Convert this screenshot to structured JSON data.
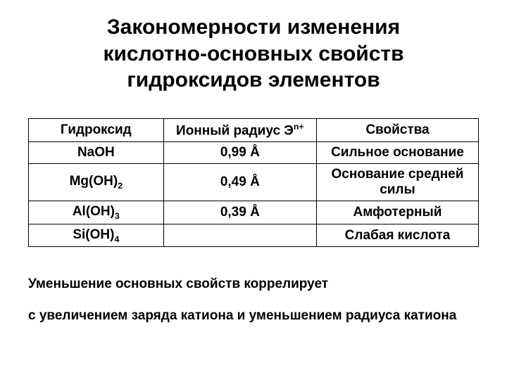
{
  "title_line1": "Закономерности изменения",
  "title_line2": "кислотно-основных свойств",
  "title_line3": "гидроксидов элементов",
  "table": {
    "headers": {
      "col1": "Гидроксид",
      "col2_prefix": "Ионный радиус Э",
      "col2_sup": "n+",
      "col3": "Свойства"
    },
    "rows": [
      {
        "hydroxide_base": "NaOH",
        "hydroxide_sub": "",
        "radius": "0,99 Å",
        "property": "Сильное основание"
      },
      {
        "hydroxide_base": "Mg(OH)",
        "hydroxide_sub": "2",
        "radius": "0,49 Å",
        "property": "Основание средней силы"
      },
      {
        "hydroxide_base": "Al(OH)",
        "hydroxide_sub": "3",
        "radius": "0,39 Å",
        "property": "Амфотерный"
      },
      {
        "hydroxide_base": "Si(OH)",
        "hydroxide_sub": "4",
        "radius": "",
        "property": "Слабая кислота"
      }
    ]
  },
  "note_line1": "Уменьшение основных свойств коррелирует",
  "note_line2": "с увеличением заряда катиона и уменьшением радиуса катиона",
  "colors": {
    "background": "#ffffff",
    "text": "#000000",
    "border": "#000000"
  },
  "fonts": {
    "title_size": 30,
    "body_size": 19,
    "family": "Arial"
  }
}
